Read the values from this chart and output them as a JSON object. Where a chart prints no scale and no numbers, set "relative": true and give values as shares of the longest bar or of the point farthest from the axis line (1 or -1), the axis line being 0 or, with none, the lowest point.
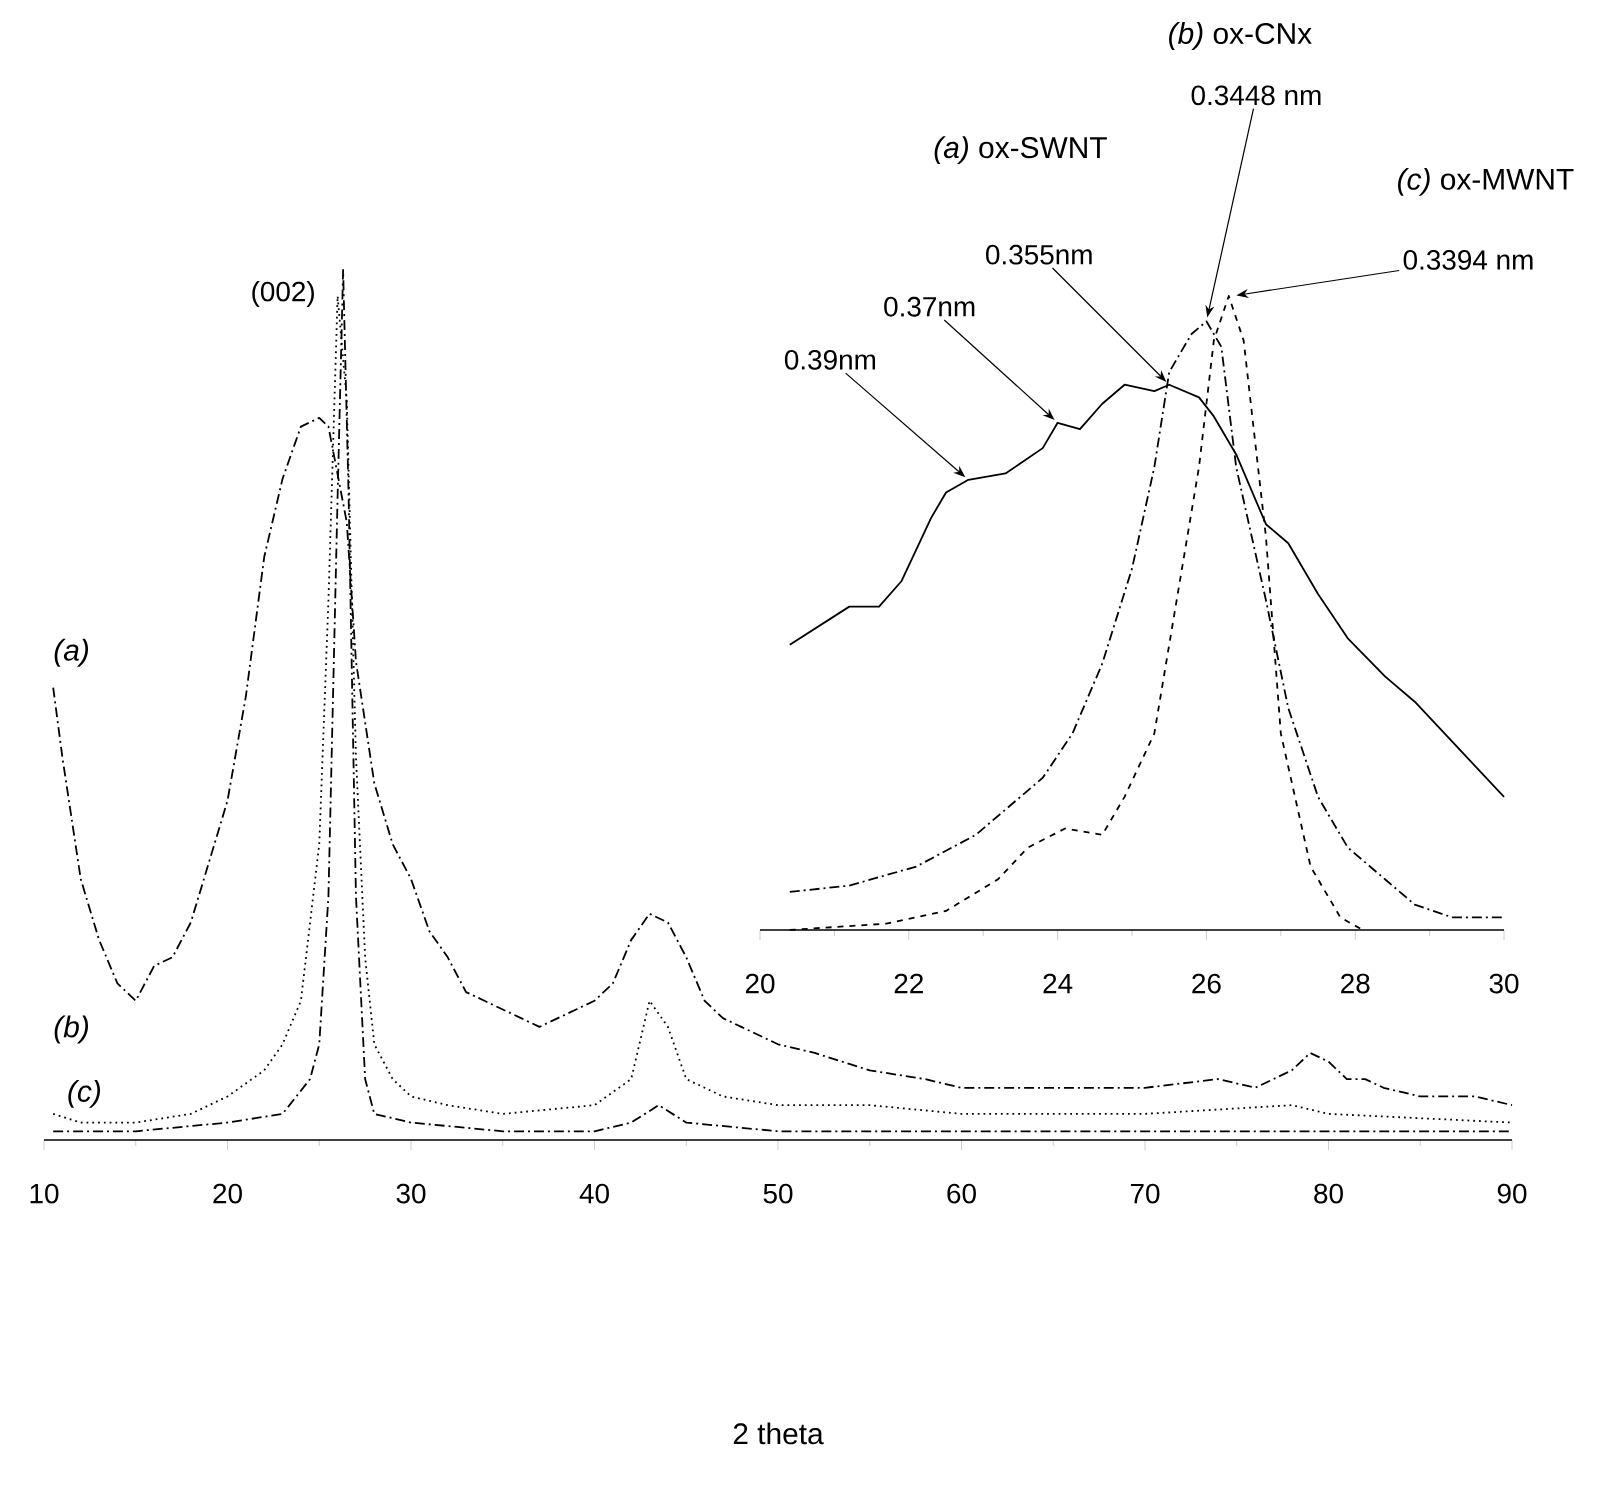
{
  "chart_data": [
    {
      "type": "line",
      "relative": true,
      "xlim": [
        10,
        90
      ],
      "xticks": [
        10,
        20,
        30,
        40,
        50,
        60,
        70,
        80,
        90
      ],
      "xlabel": "2 theta",
      "series": [
        {
          "color": "#000000",
          "line_style": "dashdot",
          "x": [
            10.5,
            11,
            12,
            13,
            14,
            15,
            16,
            17,
            18,
            19,
            20,
            21,
            22,
            23,
            24,
            25,
            25.5,
            26.5,
            27,
            28,
            29,
            30,
            31,
            32,
            33,
            34,
            35,
            36,
            37,
            38,
            39,
            40,
            41,
            42,
            43,
            44,
            45,
            46,
            47,
            48,
            50,
            52,
            55,
            58,
            60,
            62,
            65,
            70,
            74,
            76,
            78,
            79,
            80,
            81,
            82,
            83,
            85,
            88,
            90
          ],
          "values": [
            0.52,
            0.44,
            0.3,
            0.23,
            0.18,
            0.16,
            0.2,
            0.21,
            0.25,
            0.32,
            0.39,
            0.51,
            0.67,
            0.76,
            0.82,
            0.83,
            0.82,
            0.71,
            0.55,
            0.41,
            0.34,
            0.3,
            0.24,
            0.21,
            0.17,
            0.16,
            0.15,
            0.14,
            0.13,
            0.14,
            0.15,
            0.16,
            0.18,
            0.23,
            0.26,
            0.25,
            0.21,
            0.16,
            0.14,
            0.13,
            0.11,
            0.1,
            0.08,
            0.07,
            0.06,
            0.06,
            0.06,
            0.06,
            0.07,
            0.06,
            0.08,
            0.1,
            0.09,
            0.07,
            0.07,
            0.06,
            0.05,
            0.05,
            0.04
          ]
        },
        {
          "color": "#000000",
          "line_style": "dotted",
          "x": [
            10.5,
            12,
            15,
            18,
            20,
            22,
            23,
            24,
            25,
            25.5,
            26,
            26.5,
            27,
            27.5,
            28,
            29,
            30,
            32,
            35,
            40,
            42,
            43,
            44,
            45,
            47,
            50,
            55,
            60,
            70,
            78,
            80,
            90
          ],
          "values": [
            0.03,
            0.02,
            0.02,
            0.03,
            0.05,
            0.08,
            0.11,
            0.16,
            0.34,
            0.62,
            0.97,
            0.85,
            0.44,
            0.21,
            0.11,
            0.07,
            0.05,
            0.04,
            0.03,
            0.04,
            0.07,
            0.16,
            0.13,
            0.07,
            0.05,
            0.04,
            0.04,
            0.03,
            0.03,
            0.04,
            0.03,
            0.02
          ]
        },
        {
          "color": "#000000",
          "line_style": "dashdot",
          "x": [
            10.5,
            15,
            20,
            23,
            24.5,
            25,
            25.5,
            26,
            26.3,
            26.6,
            27,
            27.5,
            28,
            30,
            35,
            40,
            42,
            43.5,
            45,
            50,
            60,
            80,
            90
          ],
          "values": [
            0.01,
            0.01,
            0.02,
            0.03,
            0.07,
            0.11,
            0.28,
            0.74,
            1,
            0.74,
            0.28,
            0.07,
            0.03,
            0.02,
            0.01,
            0.01,
            0.02,
            0.04,
            0.02,
            0.01,
            0.01,
            0.01,
            0.01
          ]
        }
      ],
      "annotations": [
        {
          "text": "(002)",
          "x": 26.3,
          "y": 1
        },
        "(a)",
        "(b)",
        "(c)"
      ]
    },
    {
      "type": "line",
      "relative": true,
      "xlim": [
        20,
        30
      ],
      "xticks": [
        20,
        22,
        24,
        26,
        28,
        30
      ],
      "series": [
        {
          "color": "#000000",
          "line_style": "solid",
          "x": [
            20.4,
            21.2,
            21.6,
            21.9,
            22.3,
            22.5,
            22.8,
            23.3,
            23.8,
            24.0,
            24.3,
            24.6,
            24.9,
            25.3,
            25.5,
            25.9,
            26.1,
            26.4,
            26.8,
            27.1,
            27.5,
            27.9,
            28.4,
            28.8,
            29.2,
            29.6,
            30
          ],
          "values": [
            0.45,
            0.51,
            0.51,
            0.55,
            0.65,
            0.69,
            0.71,
            0.72,
            0.76,
            0.8,
            0.79,
            0.83,
            0.86,
            0.85,
            0.86,
            0.84,
            0.81,
            0.75,
            0.64,
            0.61,
            0.53,
            0.46,
            0.4,
            0.36,
            0.31,
            0.26,
            0.21
          ]
        },
        {
          "color": "#000000",
          "line_style": "dashdot",
          "x": [
            20.4,
            21.2,
            22.1,
            22.9,
            23.8,
            24.2,
            24.6,
            25.0,
            25.3,
            25.5,
            25.8,
            26.0,
            26.2,
            26.4,
            26.8,
            27.1,
            27.5,
            27.9,
            28.4,
            28.8,
            29.3,
            30
          ],
          "values": [
            0.06,
            0.07,
            0.1,
            0.15,
            0.24,
            0.31,
            0.42,
            0.57,
            0.73,
            0.88,
            0.94,
            0.96,
            0.92,
            0.73,
            0.52,
            0.35,
            0.21,
            0.13,
            0.08,
            0.04,
            0.02,
            0.02
          ]
        },
        {
          "color": "#000000",
          "line_style": "dashed",
          "x": [
            20.4,
            21.7,
            22.5,
            23.2,
            23.6,
            24.1,
            24.6,
            24.9,
            25.3,
            25.6,
            25.9,
            26.1,
            26.3,
            26.5,
            26.8,
            27.0,
            27.4,
            27.8,
            28.1
          ],
          "values": [
            0,
            0.01,
            0.03,
            0.08,
            0.13,
            0.16,
            0.15,
            0.21,
            0.31,
            0.52,
            0.73,
            0.93,
            1,
            0.93,
            0.62,
            0.31,
            0.1,
            0.02,
            0
          ]
        }
      ],
      "annotations": [
        {
          "text": "0.3448 nm",
          "x": 26.0,
          "y": 0.96
        },
        {
          "text": "0.3394 nm",
          "x": 26.35,
          "y": 1
        },
        {
          "text": "0.355nm",
          "x": 25.5,
          "y": 0.86
        },
        {
          "text": "0.37nm",
          "x": 24.0,
          "y": 0.8
        },
        {
          "text": "0.39nm",
          "x": 22.8,
          "y": 0.71
        },
        "*(a)* ox-SWNT",
        "*(b)* ox-CNx",
        "*(c)* ox-MWNT"
      ]
    }
  ]
}
